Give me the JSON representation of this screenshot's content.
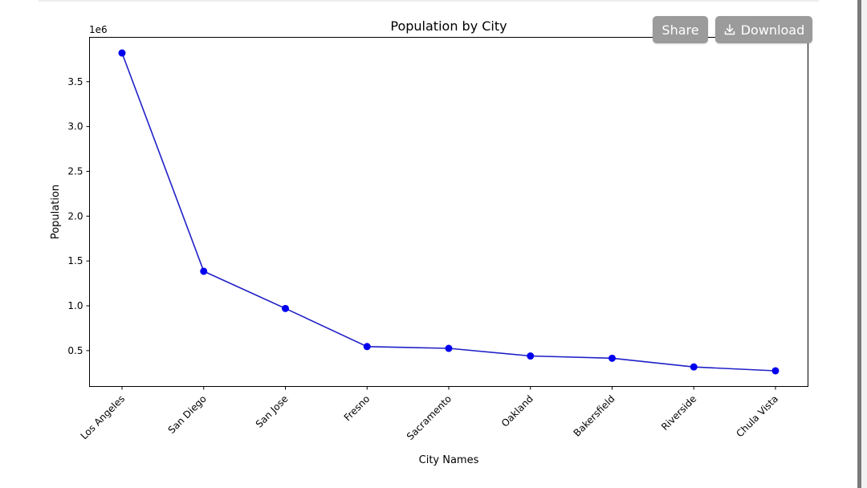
{
  "toolbar": {
    "share_label": "Share",
    "download_label": "Download",
    "download_icon": "download-icon"
  },
  "colors": {
    "line": "#2020c8",
    "marker": "#0000ee",
    "button_bg": "#9b9b9b"
  },
  "chart_data": {
    "type": "line",
    "title": "Population by City",
    "xlabel": "City Names",
    "ylabel": "Population",
    "offset_text": "1e6",
    "categories": [
      "Los Angeles",
      "San Diego",
      "San Jose",
      "Fresno",
      "Sacramento",
      "Oakland",
      "Bakersfield",
      "Riverside",
      "Chula Vista"
    ],
    "values": [
      3820000,
      1385000,
      970000,
      545000,
      525000,
      440000,
      415000,
      318000,
      275000
    ],
    "yticks": [
      0.5,
      1.0,
      1.5,
      2.0,
      2.5,
      3.0,
      3.5
    ],
    "ytick_labels": [
      "0.5",
      "1.0",
      "1.5",
      "2.0",
      "2.5",
      "3.0",
      "3.5"
    ],
    "ylim": [
      100000,
      3995000
    ],
    "xtick_rotation": 45,
    "markers": true,
    "grid": false,
    "legend": false
  }
}
